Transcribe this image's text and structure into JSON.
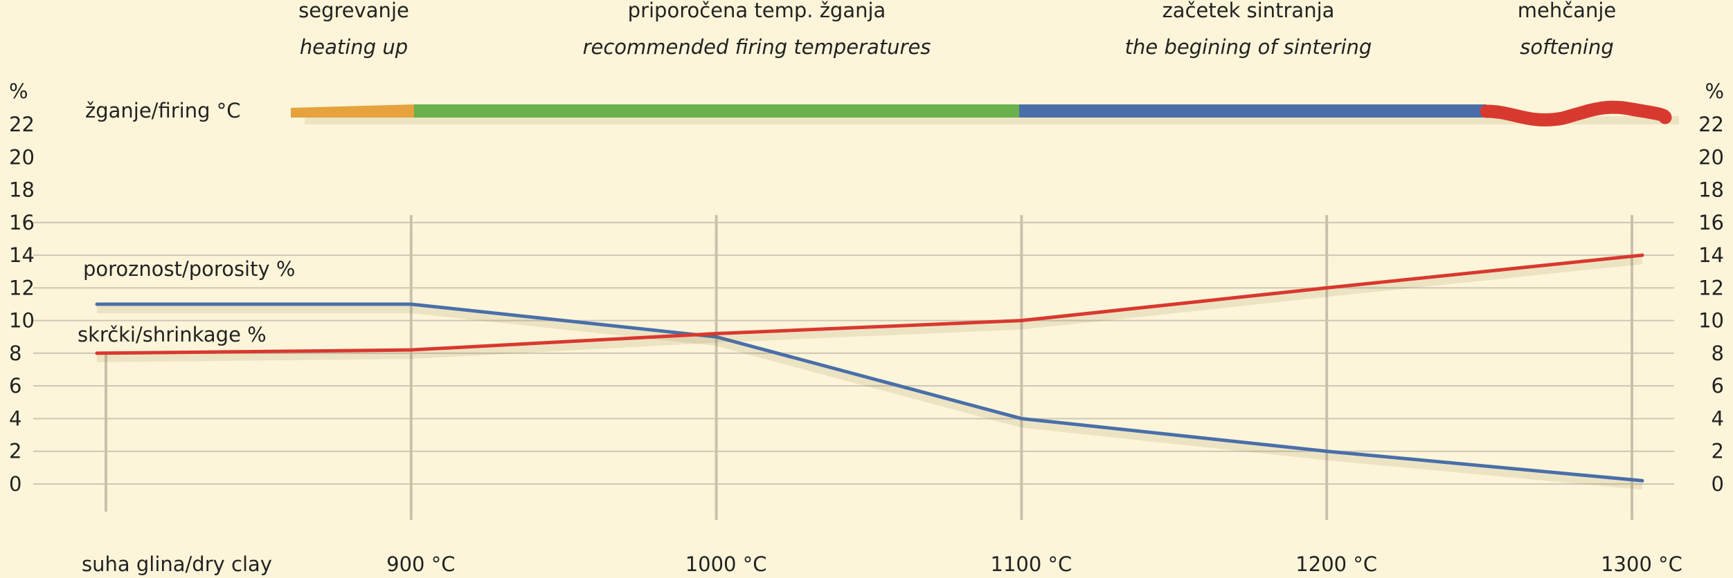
{
  "chart_data": {
    "type": "line",
    "categories": [
      "suha glina/dry clay",
      "900 °C",
      "1000 °C",
      "1100 °C",
      "1200 °C",
      "1300 °C"
    ],
    "series": [
      {
        "name": "poroznost/porosity %",
        "color": "#4a6fa8",
        "values": [
          11,
          11,
          9,
          4,
          2,
          0.2
        ]
      },
      {
        "name": "skrčki/shrinkage %",
        "color": "#d8392f",
        "values": [
          8,
          8.2,
          9.2,
          10,
          12,
          14
        ]
      }
    ],
    "y_label": "%",
    "ylim": [
      0,
      22
    ],
    "yticks": [
      0,
      2,
      4,
      6,
      8,
      10,
      12,
      14,
      16,
      18,
      20,
      22
    ],
    "grid": true,
    "firing": {
      "label": "žganje/firing °C",
      "stages": [
        {
          "name": "segrevanje",
          "name_en": "heating up",
          "color": "#e6a23c"
        },
        {
          "name": "priporočena temp. žganja",
          "name_en": "recommended firing temperatures",
          "color": "#6ab04c"
        },
        {
          "name": "začetek sintranja",
          "name_en": "the begining of sintering",
          "color": "#4a6fa8"
        },
        {
          "name": "mehčanje",
          "name_en": "softening",
          "color": "#d8392f"
        }
      ]
    }
  }
}
